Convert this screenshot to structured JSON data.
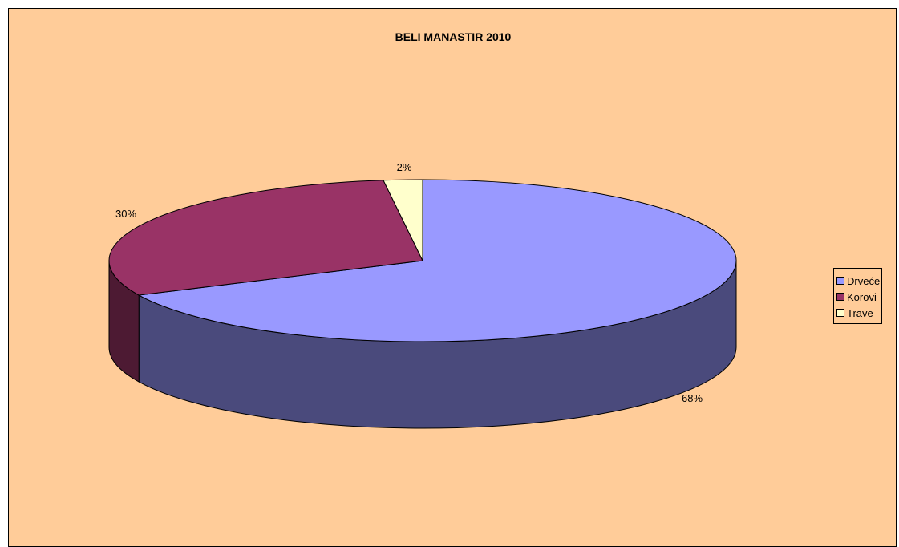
{
  "chart_data": {
    "type": "pie",
    "title": "BELI MANASTIR 2010",
    "slices": [
      {
        "label": "Drveće",
        "value": 68,
        "data_label": "68%",
        "color": "#9999ff",
        "side_color": "#4a4a7c"
      },
      {
        "label": "Korovi",
        "value": 30,
        "data_label": "30%",
        "color": "#993366",
        "side_color": "#4d1a33"
      },
      {
        "label": "Trave",
        "value": 2,
        "data_label": "2%",
        "color": "#ffffcc",
        "side_color": "#808066"
      }
    ],
    "three_d": true,
    "legend_position": "right"
  }
}
